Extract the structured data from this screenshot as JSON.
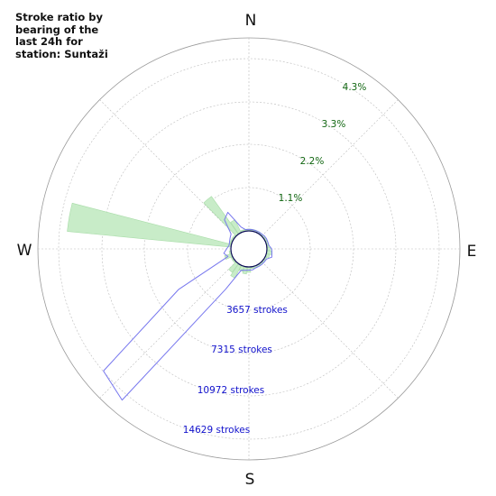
{
  "chart_data": {
    "type": "polar",
    "title": "Stroke ratio by\nbearing of the\nlast 24h for\nstation: Suntaži",
    "directions": [
      "N",
      "E",
      "S",
      "W"
    ],
    "ratio_ticks": [
      "1.1%",
      "2.2%",
      "3.3%",
      "4.3%"
    ],
    "stroke_ticks": [
      "3657 strokes",
      "7315 strokes",
      "10972 strokes",
      "14629 strokes"
    ],
    "ratio_max": 5.4,
    "stroke_max": 18300,
    "grid": true,
    "colors": {
      "ratio_fill": "#c8ecc8",
      "ratio_line": "#a8dca8",
      "strokes_line": "#7777ee",
      "ratio_tick_text": "#116611",
      "stroke_tick_text": "#1111cc",
      "center_edge": "#0a0a55",
      "grid": "#999999"
    },
    "series": [
      {
        "bearing_deg": [
          0,
          10,
          20,
          30,
          40,
          50,
          60,
          70,
          80,
          90,
          100,
          110,
          120,
          130,
          140,
          150,
          160,
          170,
          180,
          190,
          200,
          210,
          220,
          230,
          240,
          250,
          260,
          270,
          280,
          290,
          300,
          310,
          320,
          330,
          340,
          350
        ],
        "ratio_pct": [
          0.05,
          0.05,
          0.05,
          0.05,
          0.05,
          0.05,
          0.05,
          0.05,
          0.05,
          0.1,
          0.15,
          0.1,
          0.05,
          0.05,
          0.05,
          0.05,
          0.05,
          0.05,
          0.15,
          0.2,
          0.15,
          0.4,
          0.3,
          0.05,
          0.05,
          0.2,
          0.05,
          0.0,
          4.6,
          0.05,
          0.05,
          0.05,
          1.3,
          0.4,
          0.05,
          0.05
        ]
      },
      {
        "bearing_deg": [
          0,
          10,
          20,
          30,
          40,
          50,
          60,
          70,
          80,
          90,
          100,
          110,
          120,
          130,
          140,
          150,
          160,
          170,
          180,
          190,
          200,
          210,
          220,
          230,
          240,
          250,
          260,
          270,
          280,
          290,
          300,
          310,
          320,
          330,
          340,
          350
        ],
        "strokes": [
          150,
          150,
          150,
          150,
          150,
          200,
          220,
          200,
          220,
          450,
          500,
          600,
          220,
          200,
          200,
          200,
          200,
          300,
          300,
          350,
          450,
          2700,
          17000,
          16300,
          6000,
          400,
          700,
          400,
          200,
          250,
          350,
          500,
          1900,
          2300,
          500,
          150
        ]
      }
    ]
  }
}
